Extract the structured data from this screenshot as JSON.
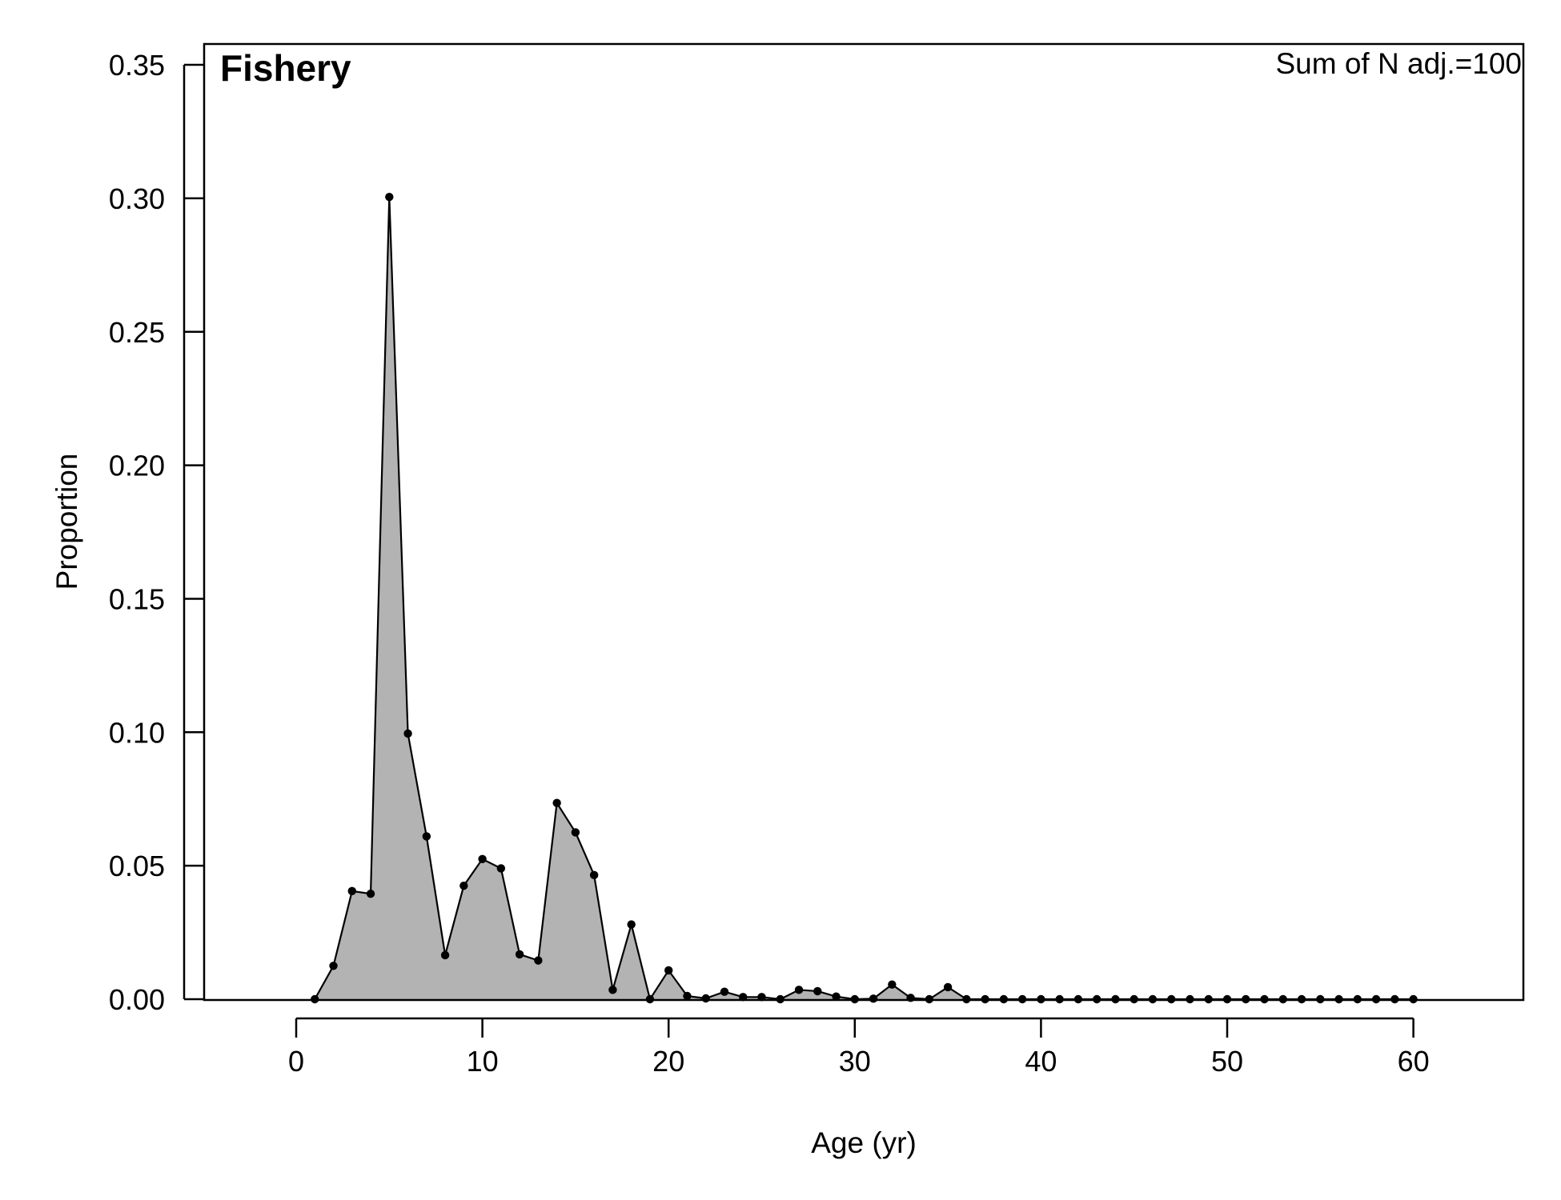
{
  "chart_data": {
    "type": "area",
    "title": "Fishery",
    "annotation": "Sum of N adj.=100",
    "xlabel": "Age (yr)",
    "ylabel": "Proportion",
    "xlim": [
      -5,
      66
    ],
    "ylim": [
      0,
      0.35
    ],
    "x_ticks": [
      0,
      10,
      20,
      30,
      40,
      50,
      60
    ],
    "x_tick_labels": [
      "0",
      "10",
      "20",
      "30",
      "40",
      "50",
      "60"
    ],
    "y_ticks": [
      0,
      0.05,
      0.1,
      0.15,
      0.2,
      0.25,
      0.3,
      0.35
    ],
    "y_tick_labels": [
      "0.00",
      "0.05",
      "0.10",
      "0.15",
      "0.20",
      "0.25",
      "0.30",
      "0.35"
    ],
    "grid": false,
    "legend": "none",
    "colors": {
      "fill": "#b3b3b3",
      "line": "#000000",
      "points": "#000000"
    },
    "series": [
      {
        "x": [
          1,
          2,
          3,
          4,
          5,
          6,
          7,
          8,
          9,
          10,
          11,
          12,
          13,
          14,
          15,
          16,
          17,
          18,
          19,
          20,
          21,
          22,
          23,
          24,
          25,
          26,
          27,
          28,
          29,
          30,
          31,
          32,
          33,
          34,
          35,
          36,
          37,
          38,
          39,
          40,
          41,
          42,
          43,
          44,
          45,
          46,
          47,
          48,
          49,
          50,
          51,
          52,
          53,
          54,
          55,
          56,
          57,
          58,
          59,
          60
        ],
        "values": [
          0.0,
          0.0125,
          0.0405,
          0.0395,
          0.3005,
          0.0995,
          0.061,
          0.0165,
          0.0425,
          0.0525,
          0.049,
          0.0168,
          0.0145,
          0.0735,
          0.0625,
          0.0465,
          0.0035,
          0.028,
          0.0,
          0.0108,
          0.0012,
          0.0003,
          0.0028,
          0.0008,
          0.0008,
          0.0,
          0.0035,
          0.003,
          0.001,
          0.0,
          0.0002,
          0.0055,
          0.0005,
          0.0,
          0.0045,
          0.0,
          0.0,
          0.0,
          0.0,
          0.0,
          0.0,
          0.0,
          0.0,
          0.0,
          0.0,
          0.0,
          0.0,
          0.0,
          0.0,
          0.0,
          0.0,
          0.0,
          0.0,
          0.0,
          0.0,
          0.0,
          0.0,
          0.0,
          0.0,
          0.0
        ]
      }
    ]
  }
}
